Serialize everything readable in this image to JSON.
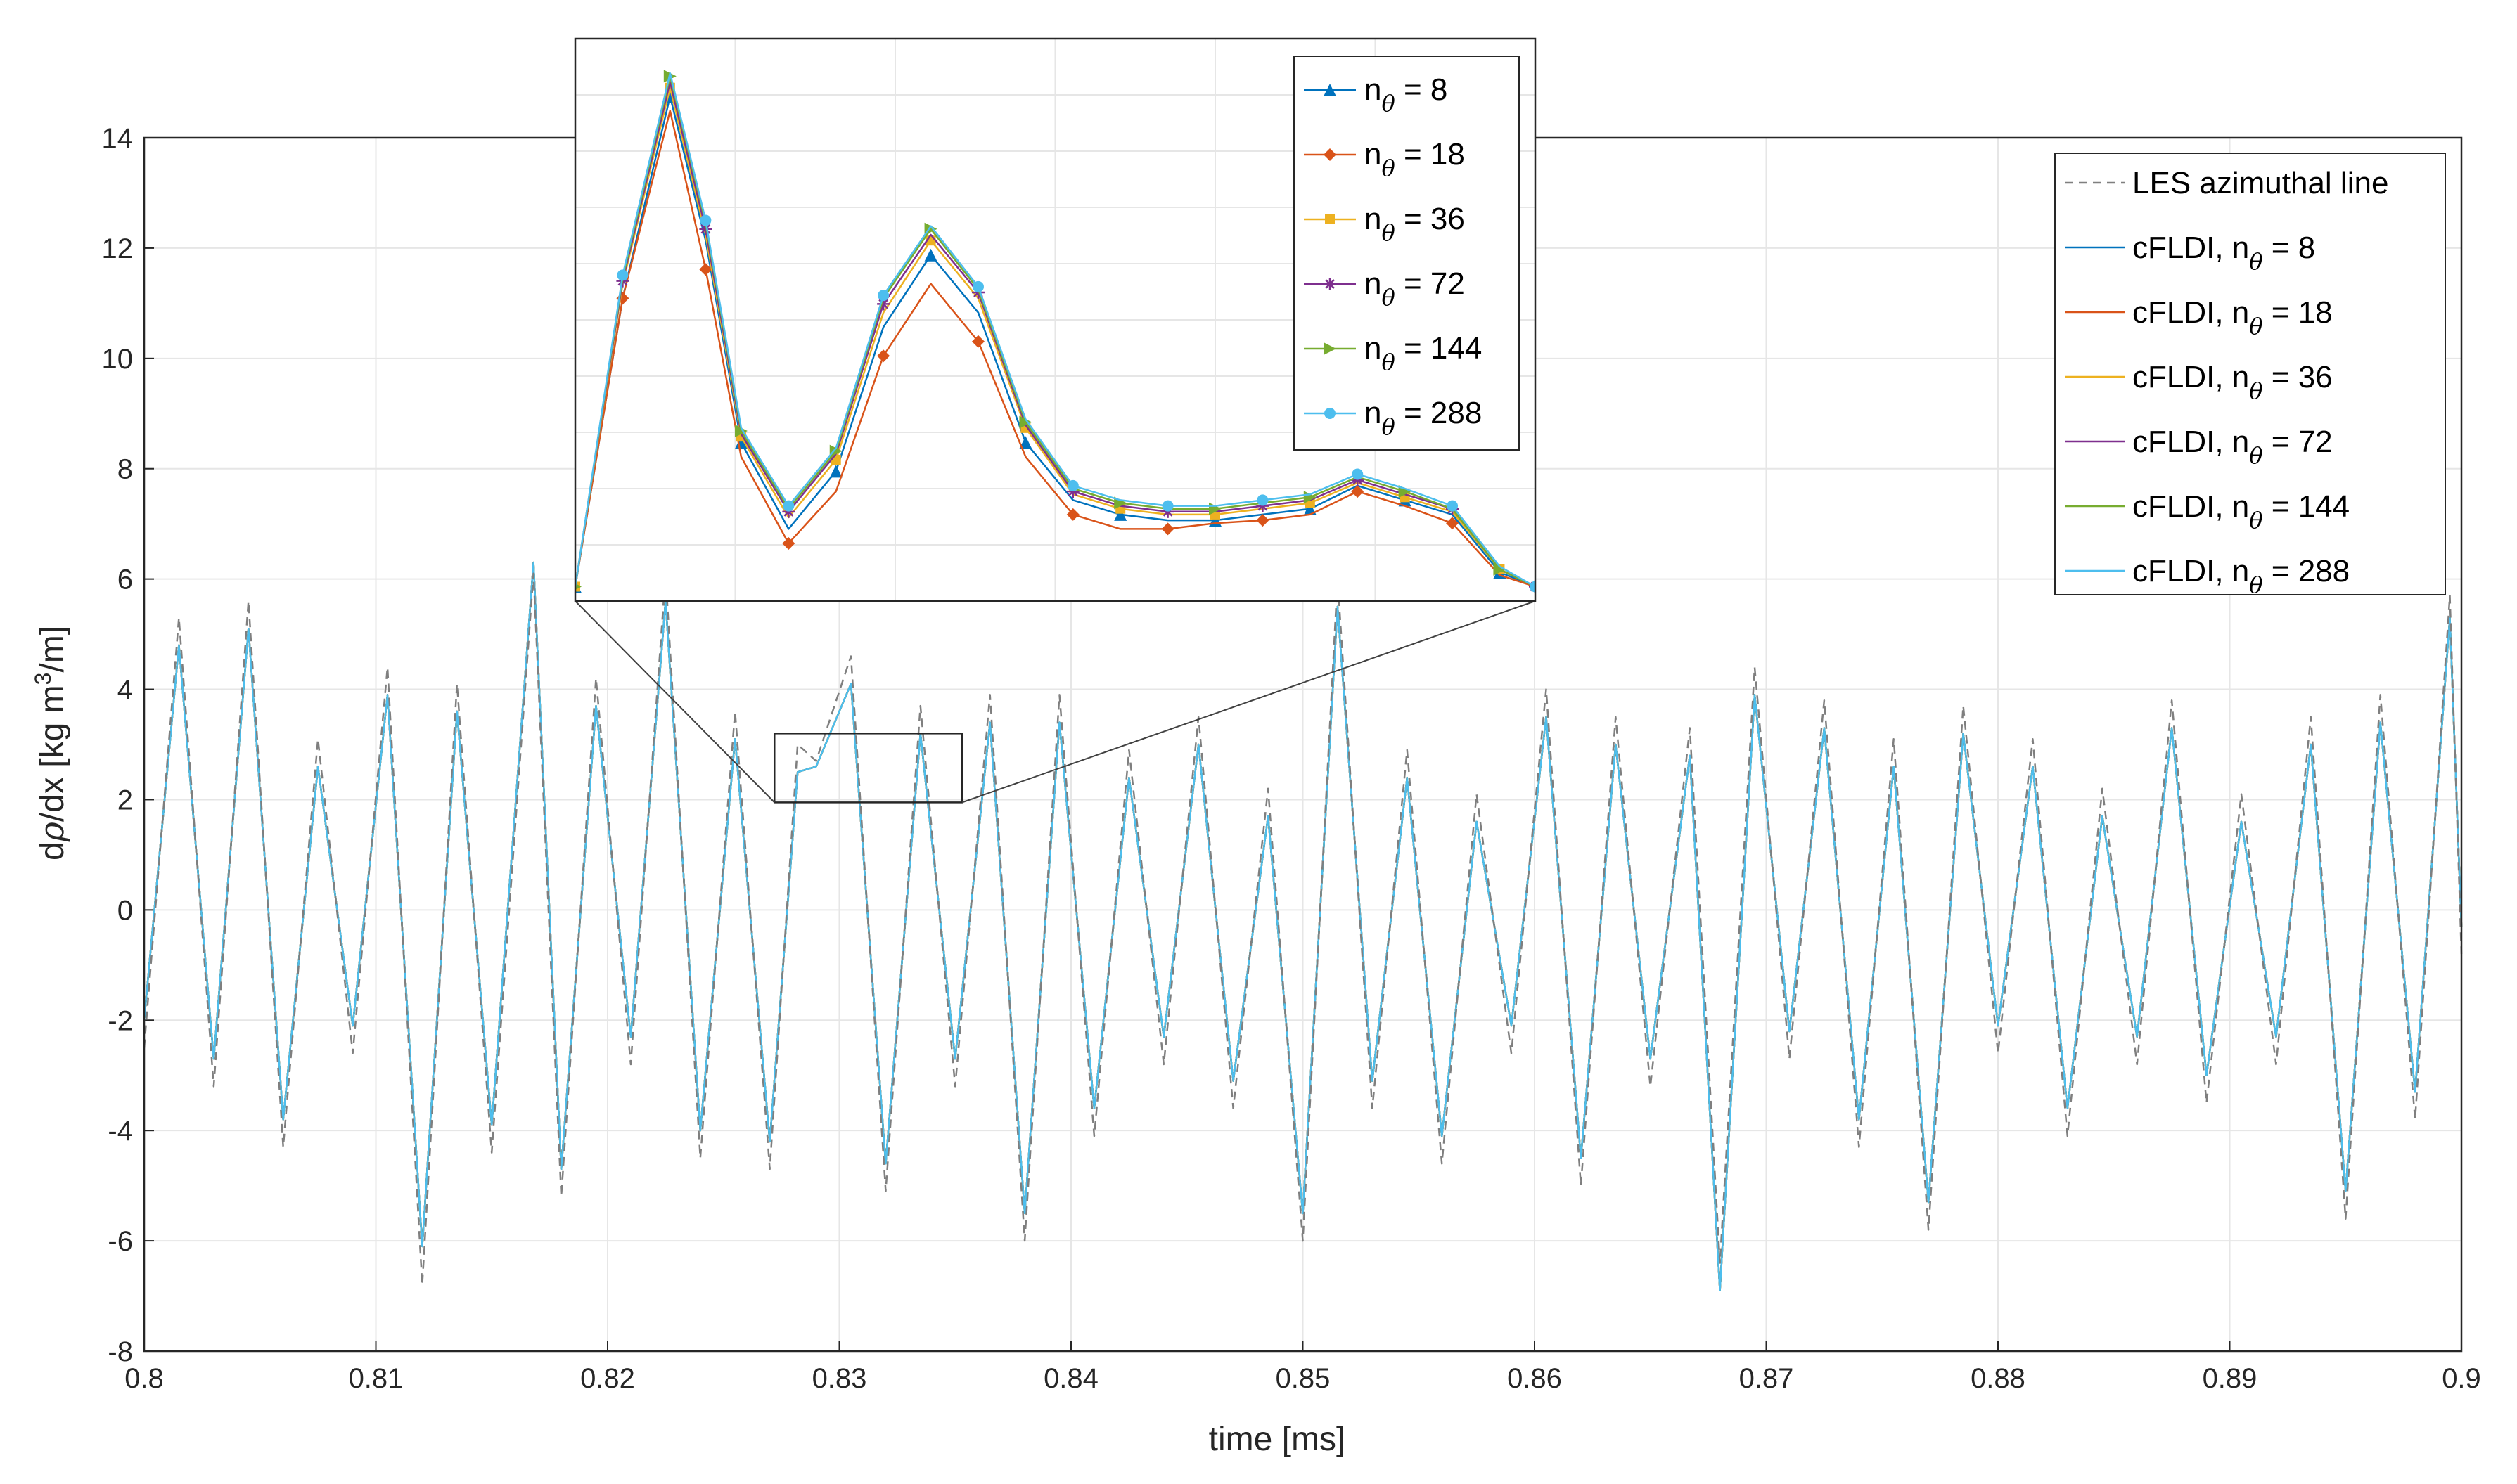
{
  "chart_data": [
    {
      "type": "line",
      "xlabel": "time [ms]",
      "ylabel": {
        "base": "d",
        "greek": "ρ",
        "rest": "/dx [kg m",
        "sup": "3",
        "tail": "/m]"
      },
      "xlim": [
        0.8,
        0.9
      ],
      "ylim": [
        -8,
        14
      ],
      "grid": true,
      "legend_position": "top-right",
      "x_ticks": [
        "0.8",
        "0.81",
        "0.82",
        "0.83",
        "0.84",
        "0.85",
        "0.86",
        "0.87",
        "0.88",
        "0.89",
        "0.9"
      ],
      "y_ticks": [
        "-8",
        "-6",
        "-4",
        "-2",
        "0",
        "2",
        "4",
        "6",
        "8",
        "10",
        "12",
        "14"
      ],
      "x": [
        0.8,
        0.8015,
        0.803,
        0.8045,
        0.806,
        0.8075,
        0.809,
        0.8105,
        0.812,
        0.8135,
        0.815,
        0.8168,
        0.818,
        0.8195,
        0.821,
        0.8225,
        0.824,
        0.8255,
        0.827,
        0.8282,
        0.829,
        0.8305,
        0.832,
        0.8335,
        0.835,
        0.8365,
        0.838,
        0.8395,
        0.841,
        0.8425,
        0.844,
        0.8455,
        0.847,
        0.8485,
        0.85,
        0.8515,
        0.853,
        0.8545,
        0.856,
        0.8575,
        0.859,
        0.8605,
        0.862,
        0.8635,
        0.865,
        0.8667,
        0.868,
        0.8695,
        0.871,
        0.8725,
        0.874,
        0.8755,
        0.877,
        0.8785,
        0.88,
        0.8815,
        0.883,
        0.8845,
        0.886,
        0.8875,
        0.889,
        0.8905,
        0.892,
        0.8935,
        0.895,
        0.8965,
        0.898,
        0.8995,
        0.9
      ],
      "series": [
        {
          "name": "LES azimuthal line",
          "color": "#7f7f7f",
          "dash": true,
          "values": [
            -2.5,
            5.3,
            -3.2,
            5.6,
            -4.3,
            3.1,
            -2.6,
            4.4,
            -6.8,
            4.1,
            -4.4,
            6.1,
            -5.2,
            4.2,
            -2.8,
            6.1,
            -4.5,
            3.6,
            -4.7,
            3.0,
            2.7,
            4.6,
            -5.1,
            3.7,
            -3.2,
            3.9,
            -6.0,
            3.9,
            -4.1,
            2.9,
            -2.8,
            3.5,
            -3.6,
            2.2,
            -6.0,
            6.0,
            -3.6,
            2.9,
            -4.6,
            2.1,
            -2.6,
            4.0,
            -5.0,
            3.5,
            -3.2,
            3.3,
            -6.4,
            4.4,
            -2.7,
            3.8,
            -4.3,
            3.1,
            -5.8,
            3.7,
            -2.6,
            3.1,
            -4.1,
            2.2,
            -2.8,
            3.8,
            -3.5,
            2.1,
            -2.8,
            3.5,
            -5.6,
            3.9,
            -3.8,
            5.7,
            -0.8
          ]
        },
        {
          "name": "cFLDI, n",
          "sub": "θ",
          "label_tail": " = 8",
          "color": "#0072bd",
          "values": [
            -2.0,
            4.8,
            -2.7,
            5.1,
            -3.8,
            2.6,
            -2.1,
            3.9,
            -6.1,
            3.6,
            -3.9,
            6.3,
            -4.7,
            3.7,
            -2.3,
            5.6,
            -4.0,
            3.1,
            -4.2,
            2.5,
            2.6,
            4.1,
            -4.6,
            3.2,
            -2.7,
            3.4,
            -5.5,
            3.4,
            -3.6,
            2.4,
            -2.3,
            3.0,
            -3.1,
            1.7,
            -5.5,
            5.5,
            -3.1,
            2.4,
            -4.1,
            1.6,
            -2.1,
            3.5,
            -4.5,
            3.0,
            -2.7,
            2.8,
            -6.9,
            3.9,
            -2.2,
            3.3,
            -3.8,
            2.6,
            -5.3,
            3.2,
            -2.1,
            2.6,
            -3.6,
            1.7,
            -2.3,
            3.3,
            -3.0,
            1.6,
            -2.3,
            3.0,
            -5.1,
            3.4,
            -3.3,
            5.3,
            -0.3
          ]
        },
        {
          "name": "cFLDI, n",
          "sub": "θ",
          "label_tail": " = 18",
          "color": "#d95319",
          "values": [
            -2.0,
            4.8,
            -2.7,
            5.1,
            -3.8,
            2.6,
            -2.1,
            3.9,
            -6.1,
            3.6,
            -3.9,
            6.3,
            -4.7,
            3.7,
            -2.3,
            5.6,
            -4.0,
            3.1,
            -4.2,
            2.5,
            2.6,
            4.1,
            -4.6,
            3.2,
            -2.7,
            3.4,
            -5.5,
            3.4,
            -3.6,
            2.4,
            -2.3,
            3.0,
            -3.1,
            1.7,
            -5.5,
            5.5,
            -3.1,
            2.4,
            -4.1,
            1.6,
            -2.1,
            3.5,
            -4.5,
            3.0,
            -2.7,
            2.8,
            -6.9,
            3.9,
            -2.2,
            3.3,
            -3.8,
            2.6,
            -5.3,
            3.2,
            -2.1,
            2.6,
            -3.6,
            1.7,
            -2.3,
            3.3,
            -3.0,
            1.6,
            -2.3,
            3.0,
            -5.1,
            3.4,
            -3.3,
            5.3,
            -0.3
          ]
        },
        {
          "name": "cFLDI, n",
          "sub": "θ",
          "label_tail": " = 36",
          "color": "#edb120",
          "values": [
            -2.0,
            4.8,
            -2.7,
            5.1,
            -3.8,
            2.6,
            -2.1,
            3.9,
            -6.1,
            3.6,
            -3.9,
            6.3,
            -4.7,
            3.7,
            -2.3,
            5.6,
            -4.0,
            3.1,
            -4.2,
            2.5,
            2.6,
            4.1,
            -4.6,
            3.2,
            -2.7,
            3.4,
            -5.5,
            3.4,
            -3.6,
            2.4,
            -2.3,
            3.0,
            -3.1,
            1.7,
            -5.5,
            5.5,
            -3.1,
            2.4,
            -4.1,
            1.6,
            -2.1,
            3.5,
            -4.5,
            3.0,
            -2.7,
            2.8,
            -6.9,
            3.9,
            -2.2,
            3.3,
            -3.8,
            2.6,
            -5.3,
            3.2,
            -2.1,
            2.6,
            -3.6,
            1.7,
            -2.3,
            3.3,
            -3.0,
            1.6,
            -2.3,
            3.0,
            -5.1,
            3.4,
            -3.3,
            5.3,
            -0.3
          ]
        },
        {
          "name": "cFLDI, n",
          "sub": "θ",
          "label_tail": " = 72",
          "color": "#7e2f8e",
          "values": [
            -2.0,
            4.8,
            -2.7,
            5.1,
            -3.8,
            2.6,
            -2.1,
            3.9,
            -6.1,
            3.6,
            -3.9,
            6.3,
            -4.7,
            3.7,
            -2.3,
            5.6,
            -4.0,
            3.1,
            -4.2,
            2.5,
            2.6,
            4.1,
            -4.6,
            3.2,
            -2.7,
            3.4,
            -5.5,
            3.4,
            -3.6,
            2.4,
            -2.3,
            3.0,
            -3.1,
            1.7,
            -5.5,
            5.5,
            -3.1,
            2.4,
            -4.1,
            1.6,
            -2.1,
            3.5,
            -4.5,
            3.0,
            -2.7,
            2.8,
            -6.9,
            3.9,
            -2.2,
            3.3,
            -3.8,
            2.6,
            -5.3,
            3.2,
            -2.1,
            2.6,
            -3.6,
            1.7,
            -2.3,
            3.3,
            -3.0,
            1.6,
            -2.3,
            3.0,
            -5.1,
            3.4,
            -3.3,
            5.3,
            -0.3
          ]
        },
        {
          "name": "cFLDI, n",
          "sub": "θ",
          "label_tail": " = 144",
          "color": "#77ac30",
          "values": [
            -2.0,
            4.8,
            -2.7,
            5.1,
            -3.8,
            2.6,
            -2.1,
            3.9,
            -6.1,
            3.6,
            -3.9,
            6.3,
            -4.7,
            3.7,
            -2.3,
            5.6,
            -4.0,
            3.1,
            -4.2,
            2.5,
            2.6,
            4.1,
            -4.6,
            3.2,
            -2.7,
            3.4,
            -5.5,
            3.4,
            -3.6,
            2.4,
            -2.3,
            3.0,
            -3.1,
            1.7,
            -5.5,
            5.5,
            -3.1,
            2.4,
            -4.1,
            1.6,
            -2.1,
            3.5,
            -4.5,
            3.0,
            -2.7,
            2.8,
            -6.9,
            3.9,
            -2.2,
            3.3,
            -3.8,
            2.6,
            -5.3,
            3.2,
            -2.1,
            2.6,
            -3.6,
            1.7,
            -2.3,
            3.3,
            -3.0,
            1.6,
            -2.3,
            3.0,
            -5.1,
            3.4,
            -3.3,
            5.3,
            -0.3
          ]
        },
        {
          "name": "cFLDI, n",
          "sub": "θ",
          "label_tail": " = 288",
          "color": "#4dbeee",
          "values": [
            -2.0,
            4.8,
            -2.7,
            5.1,
            -3.8,
            2.6,
            -2.1,
            3.9,
            -6.1,
            3.6,
            -3.9,
            6.3,
            -4.7,
            3.7,
            -2.3,
            5.6,
            -4.0,
            3.1,
            -4.2,
            2.5,
            2.6,
            4.1,
            -4.6,
            3.2,
            -2.7,
            3.4,
            -5.5,
            3.4,
            -3.6,
            2.4,
            -2.3,
            3.0,
            -3.1,
            1.7,
            -5.5,
            5.5,
            -3.1,
            2.4,
            -4.1,
            1.6,
            -2.1,
            3.5,
            -4.5,
            3.0,
            -2.7,
            2.8,
            -6.9,
            3.9,
            -2.2,
            3.3,
            -3.8,
            2.6,
            -5.3,
            3.2,
            -2.1,
            2.6,
            -3.6,
            1.7,
            -2.3,
            3.3,
            -3.0,
            1.6,
            -2.3,
            3.0,
            -5.1,
            3.4,
            -3.3,
            5.3,
            -0.3
          ]
        }
      ]
    },
    {
      "type": "line",
      "role": "inset",
      "legend_position": "top-right",
      "grid": true,
      "x": [
        0.8272,
        0.8276,
        0.828,
        0.8283,
        0.8286,
        0.829,
        0.8294,
        0.8298,
        0.8302,
        0.8306,
        0.831,
        0.8314,
        0.8318,
        0.8322,
        0.8326,
        0.833,
        0.8334,
        0.8338,
        0.8342,
        0.8346,
        0.835,
        0.8353
      ],
      "series": [
        {
          "name": "n",
          "sub": "θ",
          "label_tail": " = 8",
          "color": "#0072bd",
          "marker": "triangle-up",
          "values": [
            2.6,
            3.6,
            4.3,
            3.8,
            3.1,
            2.8,
            3.0,
            3.5,
            3.75,
            3.55,
            3.1,
            2.9,
            2.85,
            2.83,
            2.83,
            2.85,
            2.87,
            2.95,
            2.9,
            2.85,
            2.65,
            2.6
          ]
        },
        {
          "name": "n",
          "sub": "θ",
          "label_tail": " = 18",
          "color": "#d95319",
          "marker": "diamond",
          "values": [
            2.6,
            3.6,
            4.25,
            3.7,
            3.05,
            2.75,
            2.93,
            3.4,
            3.65,
            3.45,
            3.05,
            2.85,
            2.8,
            2.8,
            2.82,
            2.83,
            2.85,
            2.93,
            2.88,
            2.82,
            2.64,
            2.6
          ]
        },
        {
          "name": "n",
          "sub": "θ",
          "label_tail": " = 36",
          "color": "#edb120",
          "marker": "square",
          "values": [
            2.6,
            3.65,
            4.33,
            3.82,
            3.12,
            2.84,
            3.04,
            3.55,
            3.8,
            3.6,
            3.15,
            2.92,
            2.87,
            2.85,
            2.85,
            2.87,
            2.89,
            2.96,
            2.91,
            2.86,
            2.66,
            2.6
          ]
        },
        {
          "name": "n",
          "sub": "θ",
          "label_tail": " = 72",
          "color": "#7e2f8e",
          "marker": "asterisk",
          "values": [
            2.6,
            3.66,
            4.35,
            3.84,
            3.13,
            2.86,
            3.06,
            3.58,
            3.82,
            3.62,
            3.16,
            2.93,
            2.88,
            2.86,
            2.86,
            2.88,
            2.9,
            2.97,
            2.92,
            2.87,
            2.66,
            2.6
          ]
        },
        {
          "name": "n",
          "sub": "θ",
          "label_tail": " = 144",
          "color": "#77ac30",
          "marker": "triangle-right",
          "values": [
            2.6,
            3.67,
            4.37,
            3.86,
            3.14,
            2.87,
            3.07,
            3.6,
            3.84,
            3.63,
            3.17,
            2.94,
            2.89,
            2.87,
            2.87,
            2.89,
            2.91,
            2.98,
            2.93,
            2.87,
            2.66,
            2.6
          ]
        },
        {
          "name": "n",
          "sub": "θ",
          "label_tail": " = 288",
          "color": "#4dbeee",
          "marker": "circle",
          "values": [
            2.6,
            3.68,
            4.38,
            3.87,
            3.15,
            2.88,
            3.08,
            3.61,
            3.85,
            3.64,
            3.18,
            2.95,
            2.9,
            2.88,
            2.88,
            2.9,
            2.92,
            2.99,
            2.94,
            2.88,
            2.67,
            2.6
          ]
        }
      ]
    }
  ]
}
